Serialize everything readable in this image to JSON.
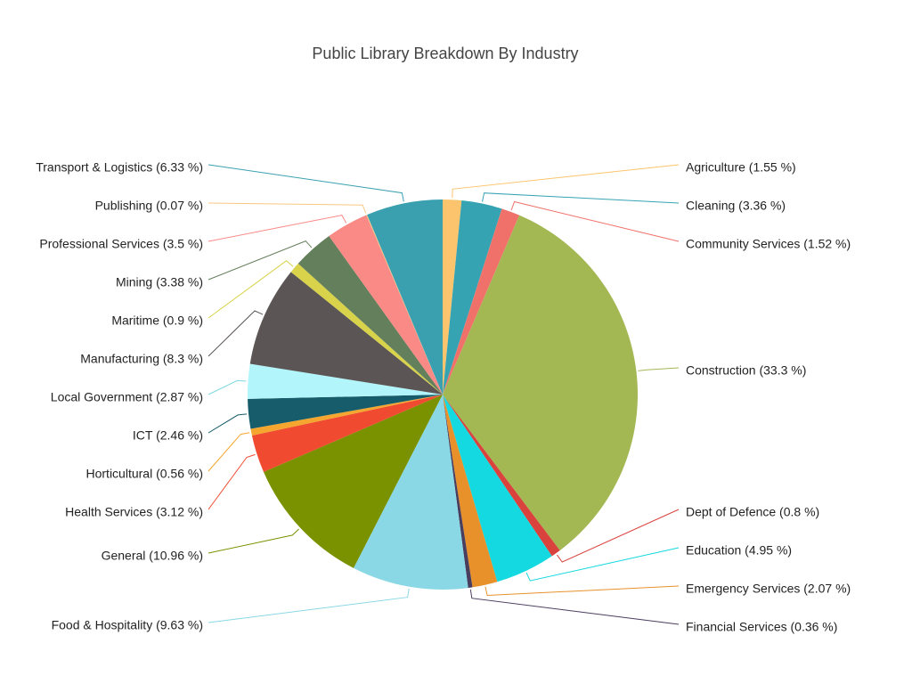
{
  "chart_data": {
    "type": "pie",
    "title": "Public Library Breakdown By Industry",
    "label_format": "{name} ({pct} %)",
    "slices": [
      {
        "name": "Agriculture",
        "value": 1.55,
        "color": "#fcc46c"
      },
      {
        "name": "Cleaning",
        "value": 3.36,
        "color": "#36a3b3"
      },
      {
        "name": "Community Services",
        "value": 1.52,
        "color": "#f0716a"
      },
      {
        "name": "Construction",
        "value": 33.3,
        "color": "#a3b853"
      },
      {
        "name": "Dept of Defence",
        "value": 0.8,
        "color": "#d9423d"
      },
      {
        "name": "Education",
        "value": 4.95,
        "color": "#14d9e0"
      },
      {
        "name": "Emergency Services",
        "value": 2.07,
        "color": "#e8912a"
      },
      {
        "name": "Financial Services",
        "value": 0.36,
        "color": "#4a3e5e"
      },
      {
        "name": "Food & Hospitality",
        "value": 9.63,
        "color": "#8ad8e6"
      },
      {
        "name": "General",
        "value": 10.96,
        "color": "#7a9200"
      },
      {
        "name": "Health Services",
        "value": 3.12,
        "color": "#f04a30"
      },
      {
        "name": "Horticultural",
        "value": 0.56,
        "color": "#f5a62e"
      },
      {
        "name": "ICT",
        "value": 2.46,
        "color": "#175c6a"
      },
      {
        "name": "Local Government",
        "value": 2.87,
        "color": "#b2f5fa"
      },
      {
        "name": "Manufacturing",
        "value": 8.3,
        "color": "#5b5655"
      },
      {
        "name": "Maritime",
        "value": 0.9,
        "color": "#d8d34a"
      },
      {
        "name": "Mining",
        "value": 3.38,
        "color": "#647f5c"
      },
      {
        "name": "Professional Services",
        "value": 3.5,
        "color": "#f98a86"
      },
      {
        "name": "Publishing",
        "value": 0.07,
        "color": "#f8c880"
      },
      {
        "name": "Transport & Logistics",
        "value": 6.33,
        "color": "#3aa0b0"
      }
    ]
  }
}
